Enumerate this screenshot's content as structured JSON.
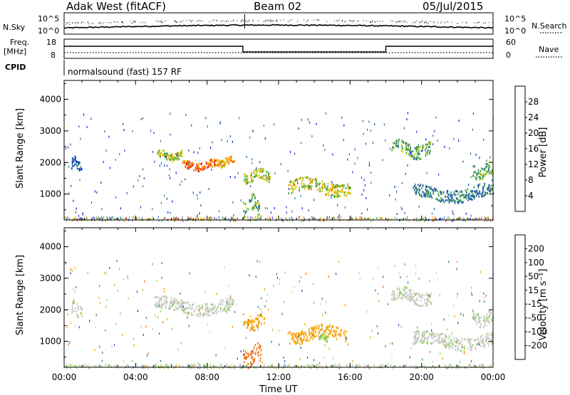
{
  "header": {
    "station": "Adak West (fitACF)",
    "beam": "Beam 02",
    "date": "05/Jul/2015"
  },
  "top_strip": {
    "nsky_label": "N.Sky",
    "nsearch_label": "N.Search",
    "left_ticks": [
      "10^5",
      "10^0"
    ],
    "right_ticks": [
      "10^5",
      "10^0"
    ]
  },
  "freq_strip": {
    "freq_label_1": "Freq.",
    "freq_label_2": "[MHz]",
    "freq_ticks": [
      "18",
      "8"
    ],
    "nave_label": "Nave",
    "nave_ticks": [
      "60",
      "0"
    ]
  },
  "cpid_strip": {
    "cpid_label": "CPID",
    "program": "normalsound (fast) 157 RF"
  },
  "colors": {
    "power": [
      "#0020e0",
      "#1d4bb8",
      "#2e7d7d",
      "#3aa03a",
      "#c8d200",
      "#f5a300",
      "#f06a00",
      "#e81e00"
    ],
    "velocity": [
      "#e81e00",
      "#f06a00",
      "#f5a300",
      "#c8c8c0",
      "#c8c8c0",
      "#7fd040",
      "#2e7d7d",
      "#1d4bb8",
      "#0020e0"
    ]
  },
  "chart_data": [
    {
      "type": "heatmap",
      "name": "power",
      "xlabel": "Time UT",
      "ylabel": "Slant Range [km]",
      "x_ticks": [
        "00:00",
        "04:00",
        "08:00",
        "12:00",
        "16:00",
        "20:00",
        "00:00"
      ],
      "y_ticks": [
        1000,
        2000,
        3000,
        4000
      ],
      "ylim": [
        180,
        4600
      ],
      "colorbar_label": "Power [dB]",
      "colorbar_ticks": [
        4,
        8,
        12,
        16,
        20,
        24,
        28
      ],
      "colorbar_range": [
        0,
        32
      ],
      "features": [
        {
          "t0": 0.4,
          "t1": 1.0,
          "r0": 1800,
          "r1": 2200,
          "level": 1
        },
        {
          "t0": 5.2,
          "t1": 6.6,
          "r0": 2100,
          "r1": 2400,
          "level": 4
        },
        {
          "t0": 6.6,
          "t1": 8.5,
          "r0": 1800,
          "r1": 2100,
          "level": 6
        },
        {
          "t0": 8.5,
          "t1": 9.5,
          "r0": 1900,
          "r1": 2200,
          "level": 5
        },
        {
          "t0": 10.0,
          "t1": 11.5,
          "r0": 1400,
          "r1": 1800,
          "level": 4
        },
        {
          "t0": 10.0,
          "t1": 11.0,
          "r0": 300,
          "r1": 1000,
          "level": 3
        },
        {
          "t0": 12.5,
          "t1": 16.0,
          "r0": 1000,
          "r1": 1500,
          "level": 4
        },
        {
          "t0": 18.3,
          "t1": 20.5,
          "r0": 2200,
          "r1": 2700,
          "level": 3
        },
        {
          "t0": 19.5,
          "t1": 24.0,
          "r0": 800,
          "r1": 1300,
          "level": 2
        },
        {
          "t0": 22.8,
          "t1": 24.0,
          "r0": 1500,
          "r1": 2000,
          "level": 3
        }
      ]
    },
    {
      "type": "heatmap",
      "name": "velocity",
      "xlabel": "Time UT",
      "ylabel": "Slant Range [km]",
      "x_ticks": [
        "00:00",
        "04:00",
        "08:00",
        "12:00",
        "16:00",
        "20:00",
        "00:00"
      ],
      "y_ticks": [
        1000,
        2000,
        3000,
        4000
      ],
      "ylim": [
        180,
        4600
      ],
      "colorbar_label": "Velocity [m s⁻¹]",
      "colorbar_ticks": [
        -200,
        -100,
        -50,
        -15,
        15,
        50,
        100,
        200
      ],
      "features": [
        {
          "t0": 0.4,
          "t1": 1.0,
          "r0": 1800,
          "r1": 2300,
          "level": 0
        },
        {
          "t0": 5.0,
          "t1": 9.5,
          "r0": 1900,
          "r1": 2400,
          "level": 0
        },
        {
          "t0": 10.0,
          "t1": 11.2,
          "r0": 1400,
          "r1": 1900,
          "level": -80
        },
        {
          "t0": 10.0,
          "t1": 11.0,
          "r0": 250,
          "r1": 900,
          "level": -150
        },
        {
          "t0": 12.5,
          "t1": 15.8,
          "r0": 1000,
          "r1": 1500,
          "level": -80
        },
        {
          "t0": 14.2,
          "t1": 14.7,
          "r0": 1050,
          "r1": 1250,
          "level": 30
        },
        {
          "t0": 18.3,
          "t1": 20.5,
          "r0": 2200,
          "r1": 2700,
          "level": 0
        },
        {
          "t0": 19.5,
          "t1": 24.0,
          "r0": 800,
          "r1": 1300,
          "level": 0
        },
        {
          "t0": 22.8,
          "t1": 24.0,
          "r0": 1500,
          "r1": 2000,
          "level": 0
        }
      ]
    }
  ]
}
